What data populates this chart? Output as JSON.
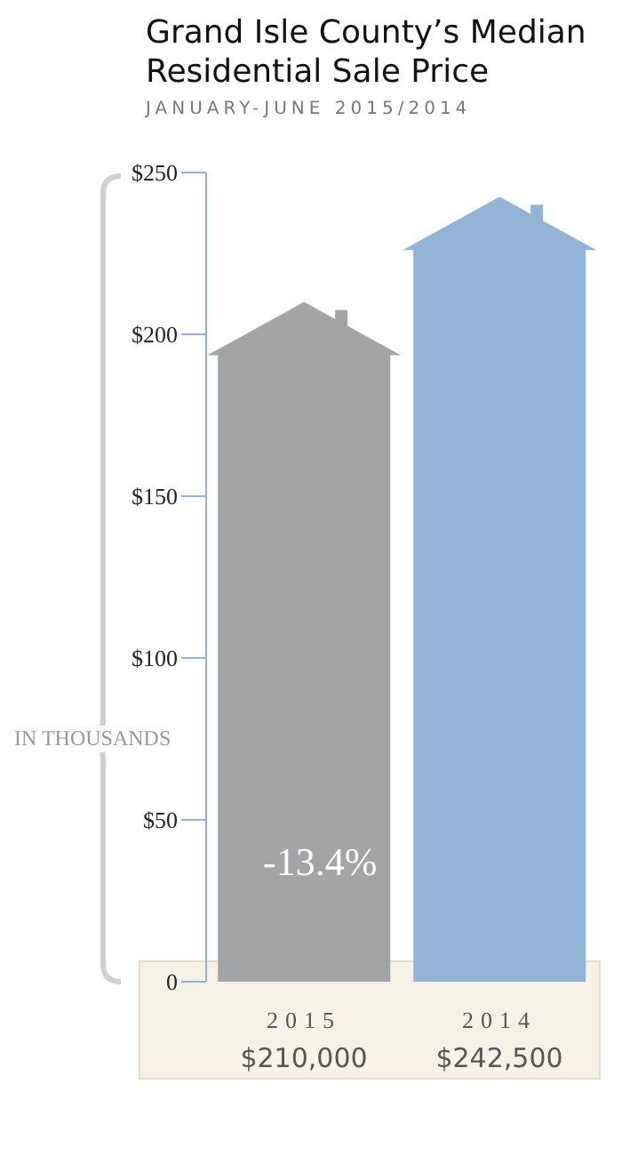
{
  "chart_data": {
    "type": "bar",
    "title": "Grand Isle County’s Median Residential Sale Price",
    "subtitle": "JANUARY-JUNE 2015/2014",
    "ylabel": "IN THOUSANDS",
    "categories": [
      "2015",
      "2014"
    ],
    "values": [
      210,
      242.5
    ],
    "colors": [
      "#a3a4a6",
      "#93b3d7"
    ],
    "ylim": [
      0,
      250
    ],
    "yticks": [
      {
        "value": 0,
        "label": "0"
      },
      {
        "value": 50,
        "label": "$50"
      },
      {
        "value": 100,
        "label": "$100"
      },
      {
        "value": 150,
        "label": "$150"
      },
      {
        "value": 200,
        "label": "$200"
      },
      {
        "value": 250,
        "label": "$250"
      }
    ],
    "annotations": [
      "-13.4%",
      "$210,000",
      "$242,500"
    ]
  }
}
